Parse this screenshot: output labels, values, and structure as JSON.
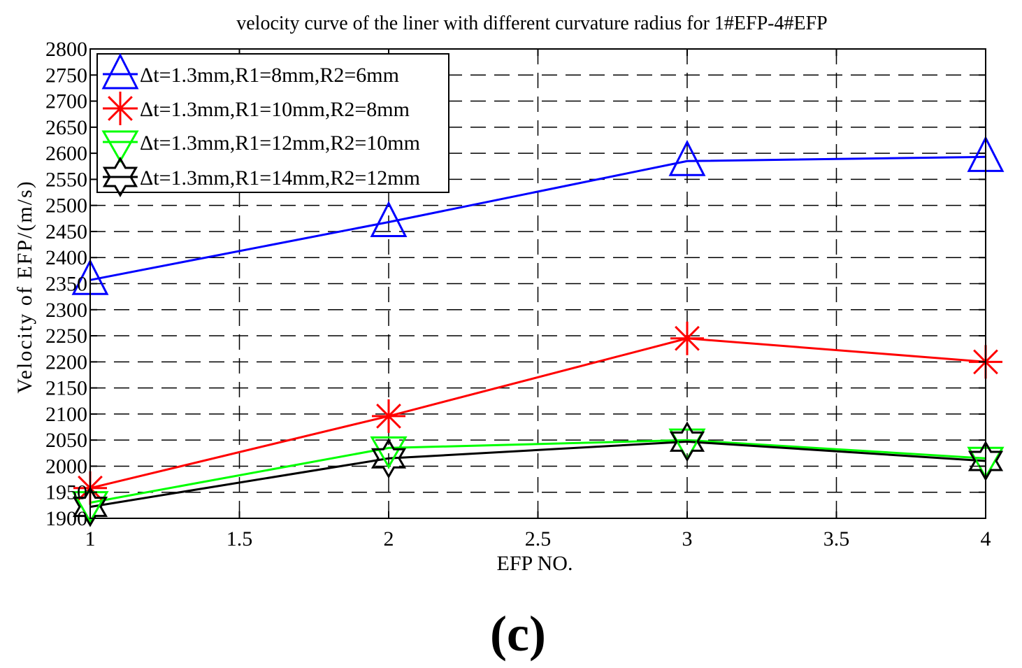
{
  "chart_data": {
    "type": "line",
    "title": "velocity curve of the liner with different curvature radius for 1#EFP-4#EFP",
    "xlabel": "EFP NO.",
    "ylabel": "Velocity of EFP/(m/s)",
    "xlim": [
      1,
      4
    ],
    "ylim": [
      1900,
      2800
    ],
    "xticks": [
      "1",
      "1.5",
      "2",
      "2.5",
      "3",
      "3.5",
      "4"
    ],
    "xtick_values": [
      1,
      1.5,
      2,
      2.5,
      3,
      3.5,
      4
    ],
    "yticks": [
      "1900",
      "1950",
      "2000",
      "2050",
      "2100",
      "2150",
      "2200",
      "2250",
      "2300",
      "2350",
      "2400",
      "2450",
      "2500",
      "2550",
      "2600",
      "2650",
      "2700",
      "2750",
      "2800"
    ],
    "ytick_values": [
      1900,
      1950,
      2000,
      2050,
      2100,
      2150,
      2200,
      2250,
      2300,
      2350,
      2400,
      2450,
      2500,
      2550,
      2600,
      2650,
      2700,
      2750,
      2800
    ],
    "grid": true,
    "legend_position": "top-left",
    "x": [
      1,
      2,
      3,
      4
    ],
    "series": [
      {
        "name": "Δt=1.3mm,R1=8mm,R2=6mm",
        "color": "#0000ff",
        "marker": "triangle-up",
        "values": [
          2357,
          2468,
          2585,
          2593
        ]
      },
      {
        "name": "Δt=1.3mm,R1=10mm,R2=8mm",
        "color": "#ff0000",
        "marker": "asterisk",
        "values": [
          1958,
          2096,
          2245,
          2200
        ]
      },
      {
        "name": "Δt=1.3mm,R1=12mm,R2=10mm",
        "color": "#00ff00",
        "marker": "triangle-down",
        "values": [
          1930,
          2035,
          2050,
          2015
        ]
      },
      {
        "name": "Δt=1.3mm,R1=14mm,R2=12mm",
        "color": "#000000",
        "marker": "hexagram",
        "values": [
          1922,
          2015,
          2047,
          2010
        ]
      }
    ],
    "panel_label": "(c)"
  }
}
